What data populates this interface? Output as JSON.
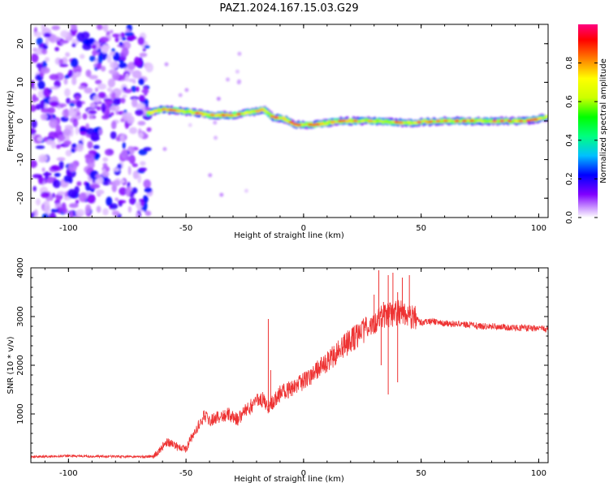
{
  "title": "PAZ1.2024.167.15.03.G29",
  "chart_data": [
    {
      "type": "heatmap",
      "xlabel": "Height of straight line (km)",
      "ylabel": "Frequency (Hz)",
      "xlim": [
        -116,
        104
      ],
      "ylim": [
        -25,
        25
      ],
      "x_ticks": [
        "-100",
        "-50",
        "0",
        "50",
        "100"
      ],
      "y_ticks": [
        "-20",
        "-10",
        "0",
        "10",
        "20"
      ],
      "colorbar": {
        "label": "Normalized spectral amplitude",
        "range": [
          0,
          1
        ],
        "ticks": [
          "0.0",
          "0.2",
          "0.4",
          "0.6",
          "0.8"
        ],
        "colormap": "gist_ncar_r",
        "colors": [
          "#ffffff",
          "#cc99ff",
          "#8000ff",
          "#0000ff",
          "#00c0ff",
          "#00ff80",
          "#00ff00",
          "#ccff00",
          "#ffff00",
          "#ff8000",
          "#ff0000",
          "#ff0080"
        ]
      },
      "description_of_features": {
        "noise_region_x": [
          -116,
          -65
        ],
        "noise_amplitude_range": [
          0.05,
          0.3
        ],
        "ridge": [
          {
            "x": -66,
            "freq": 2.0
          },
          {
            "x": -60,
            "freq": 3.0
          },
          {
            "x": -50,
            "freq": 2.5
          },
          {
            "x": -40,
            "freq": 1.5
          },
          {
            "x": -30,
            "freq": 1.5
          },
          {
            "x": -20,
            "freq": 2.5
          },
          {
            "x": -17,
            "freq": 3.0
          },
          {
            "x": -13,
            "freq": 1.0
          },
          {
            "x": -8,
            "freq": 0.5
          },
          {
            "x": -3,
            "freq": -1.0
          },
          {
            "x": 5,
            "freq": -1.0
          },
          {
            "x": 15,
            "freq": 0.0
          },
          {
            "x": 30,
            "freq": 0.0
          },
          {
            "x": 45,
            "freq": -0.5
          },
          {
            "x": 60,
            "freq": 0.0
          },
          {
            "x": 80,
            "freq": 0.0
          },
          {
            "x": 95,
            "freq": 0.0
          },
          {
            "x": 104,
            "freq": 1.0
          }
        ]
      }
    },
    {
      "type": "line",
      "xlabel": "Height of straight line (km)",
      "ylabel": "SNR (10 * v/v)",
      "xlim": [
        -116,
        104
      ],
      "ylim": [
        0,
        4000
      ],
      "x_ticks": [
        "-100",
        "-50",
        "0",
        "50",
        "100"
      ],
      "y_ticks": [
        "1000",
        "2000",
        "3000",
        "4000"
      ],
      "color": "#ee3333",
      "series": [
        {
          "points": [
            [
              -116,
              120
            ],
            [
              -110,
              130
            ],
            [
              -100,
              140
            ],
            [
              -90,
              130
            ],
            [
              -80,
              125
            ],
            [
              -70,
              120
            ],
            [
              -64,
              130
            ],
            [
              -62,
              200
            ],
            [
              -60,
              330
            ],
            [
              -58,
              430
            ],
            [
              -56,
              380
            ],
            [
              -54,
              330
            ],
            [
              -52,
              300
            ],
            [
              -50,
              280
            ],
            [
              -48,
              500
            ],
            [
              -46,
              620
            ],
            [
              -44,
              830
            ],
            [
              -42,
              980
            ],
            [
              -40,
              870
            ],
            [
              -38,
              900
            ],
            [
              -35,
              960
            ],
            [
              -32,
              1000
            ],
            [
              -28,
              880
            ],
            [
              -24,
              1100
            ],
            [
              -20,
              1250
            ],
            [
              -17,
              1300
            ],
            [
              -15,
              1150
            ],
            [
              -13,
              1250
            ],
            [
              -10,
              1420
            ],
            [
              -7,
              1480
            ],
            [
              -4,
              1560
            ],
            [
              -1,
              1650
            ],
            [
              2,
              1750
            ],
            [
              5,
              1850
            ],
            [
              8,
              1980
            ],
            [
              11,
              2100
            ],
            [
              14,
              2250
            ],
            [
              17,
              2400
            ],
            [
              20,
              2500
            ],
            [
              24,
              2650
            ],
            [
              28,
              2800
            ],
            [
              32,
              2950
            ],
            [
              35,
              3000
            ],
            [
              38,
              3050
            ],
            [
              42,
              3100
            ],
            [
              45,
              3000
            ],
            [
              48,
              2950
            ],
            [
              50,
              2870
            ],
            [
              55,
              2900
            ],
            [
              60,
              2860
            ],
            [
              65,
              2850
            ],
            [
              70,
              2830
            ],
            [
              75,
              2800
            ],
            [
              80,
              2800
            ],
            [
              85,
              2780
            ],
            [
              90,
              2770
            ],
            [
              95,
              2760
            ],
            [
              100,
              2750
            ],
            [
              104,
              2740
            ]
          ],
          "spikes": [
            [
              -15,
              2950
            ],
            [
              -14,
              1900
            ],
            [
              30,
              3450
            ],
            [
              32,
              3950
            ],
            [
              34,
              3300
            ],
            [
              36,
              3850
            ],
            [
              38,
              3900
            ],
            [
              40,
              3500
            ],
            [
              42,
              3800
            ],
            [
              45,
              3850
            ],
            [
              36,
              1400
            ],
            [
              40,
              1650
            ],
            [
              33,
              2000
            ]
          ]
        }
      ]
    }
  ]
}
